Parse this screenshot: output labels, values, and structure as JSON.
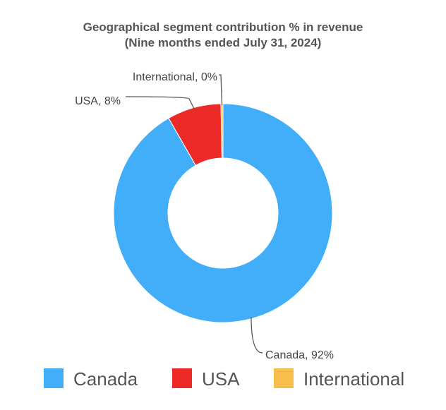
{
  "chart_data": {
    "type": "pie",
    "variant": "donut",
    "title": "Geographical segment contribution  % in revenue",
    "subtitle": "(Nine months ended July 31, 2024)",
    "slices": [
      {
        "name": "Canada",
        "value": 92,
        "label": "Canada, 92%",
        "color": "#42adf9"
      },
      {
        "name": "USA",
        "value": 8,
        "label": "USA, 8%",
        "color": "#ec2a27"
      },
      {
        "name": "International",
        "value": 0.3,
        "label": "International, 0%",
        "color": "#f7be4c"
      }
    ],
    "legend": {
      "position": "bottom",
      "entries": [
        "Canada",
        "USA",
        "International"
      ]
    }
  }
}
